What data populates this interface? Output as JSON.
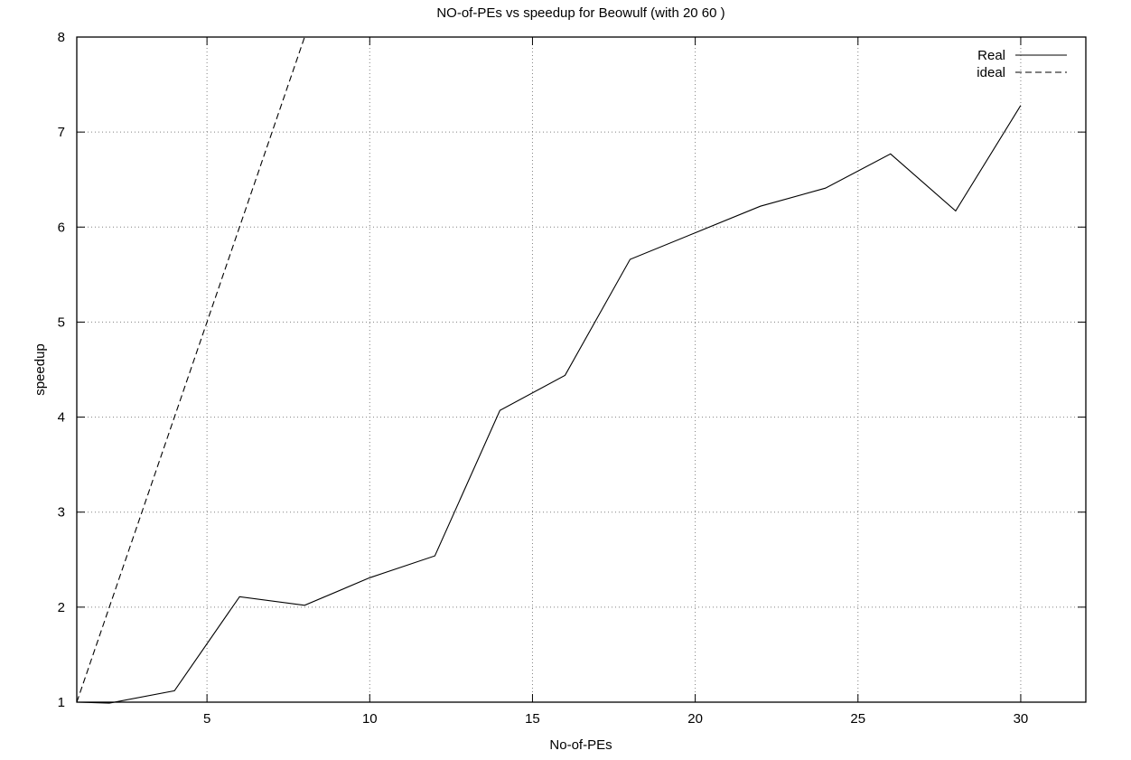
{
  "chart_data": {
    "type": "line",
    "title": "NO-of-PEs vs speedup for Beowulf (with 20 60 )",
    "xlabel": "No-of-PEs",
    "ylabel": "speedup",
    "xlim": [
      1,
      32
    ],
    "ylim": [
      1,
      8
    ],
    "xticks": [
      5,
      10,
      15,
      20,
      25,
      30
    ],
    "yticks": [
      1,
      2,
      3,
      4,
      5,
      6,
      7,
      8
    ],
    "grid": true,
    "legend_position": "top-right",
    "series": [
      {
        "name": "Real",
        "style": "solid",
        "x": [
          1,
          2,
          4,
          6,
          8,
          10,
          12,
          14,
          16,
          18,
          20,
          22,
          24,
          26,
          28,
          30
        ],
        "y": [
          1.0,
          0.99,
          1.12,
          2.11,
          2.02,
          2.31,
          2.54,
          4.07,
          4.44,
          5.66,
          5.94,
          6.22,
          6.41,
          6.77,
          6.17,
          7.28
        ]
      },
      {
        "name": "ideal",
        "style": "dashed",
        "x": [
          1,
          8
        ],
        "y": [
          1,
          8
        ]
      }
    ]
  }
}
